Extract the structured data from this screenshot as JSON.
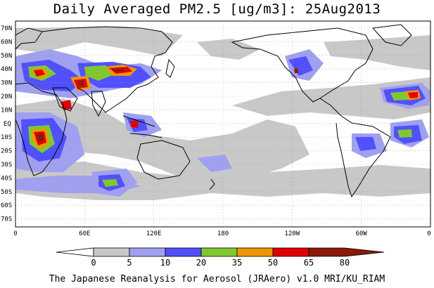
{
  "title": "Daily Averaged PM2.5 [ug/m3]: 25Aug2013",
  "credit": "The Japanese Reanalysis for Aerosol (JRAero) v1.0 MRI/KU_RIAM",
  "lat_labels": [
    "70N",
    "60N",
    "50N",
    "40N",
    "30N",
    "20N",
    "10N",
    "EQ",
    "10S",
    "20S",
    "30S",
    "40S",
    "50S",
    "60S",
    "70S"
  ],
  "lon_labels": [
    "0",
    "60E",
    "120E",
    "180",
    "120W",
    "60W",
    "0"
  ],
  "legend": {
    "thresholds": [
      "0",
      "5",
      "10",
      "20",
      "35",
      "50",
      "65",
      "80"
    ],
    "colors": [
      "#ffffff",
      "#c8c8c8",
      "#a0a0f0",
      "#5050ff",
      "#80c830",
      "#f09600",
      "#e10000",
      "#8b1a0a"
    ]
  },
  "colors": {
    "land_outline": "#000000",
    "grid": "#999999"
  }
}
